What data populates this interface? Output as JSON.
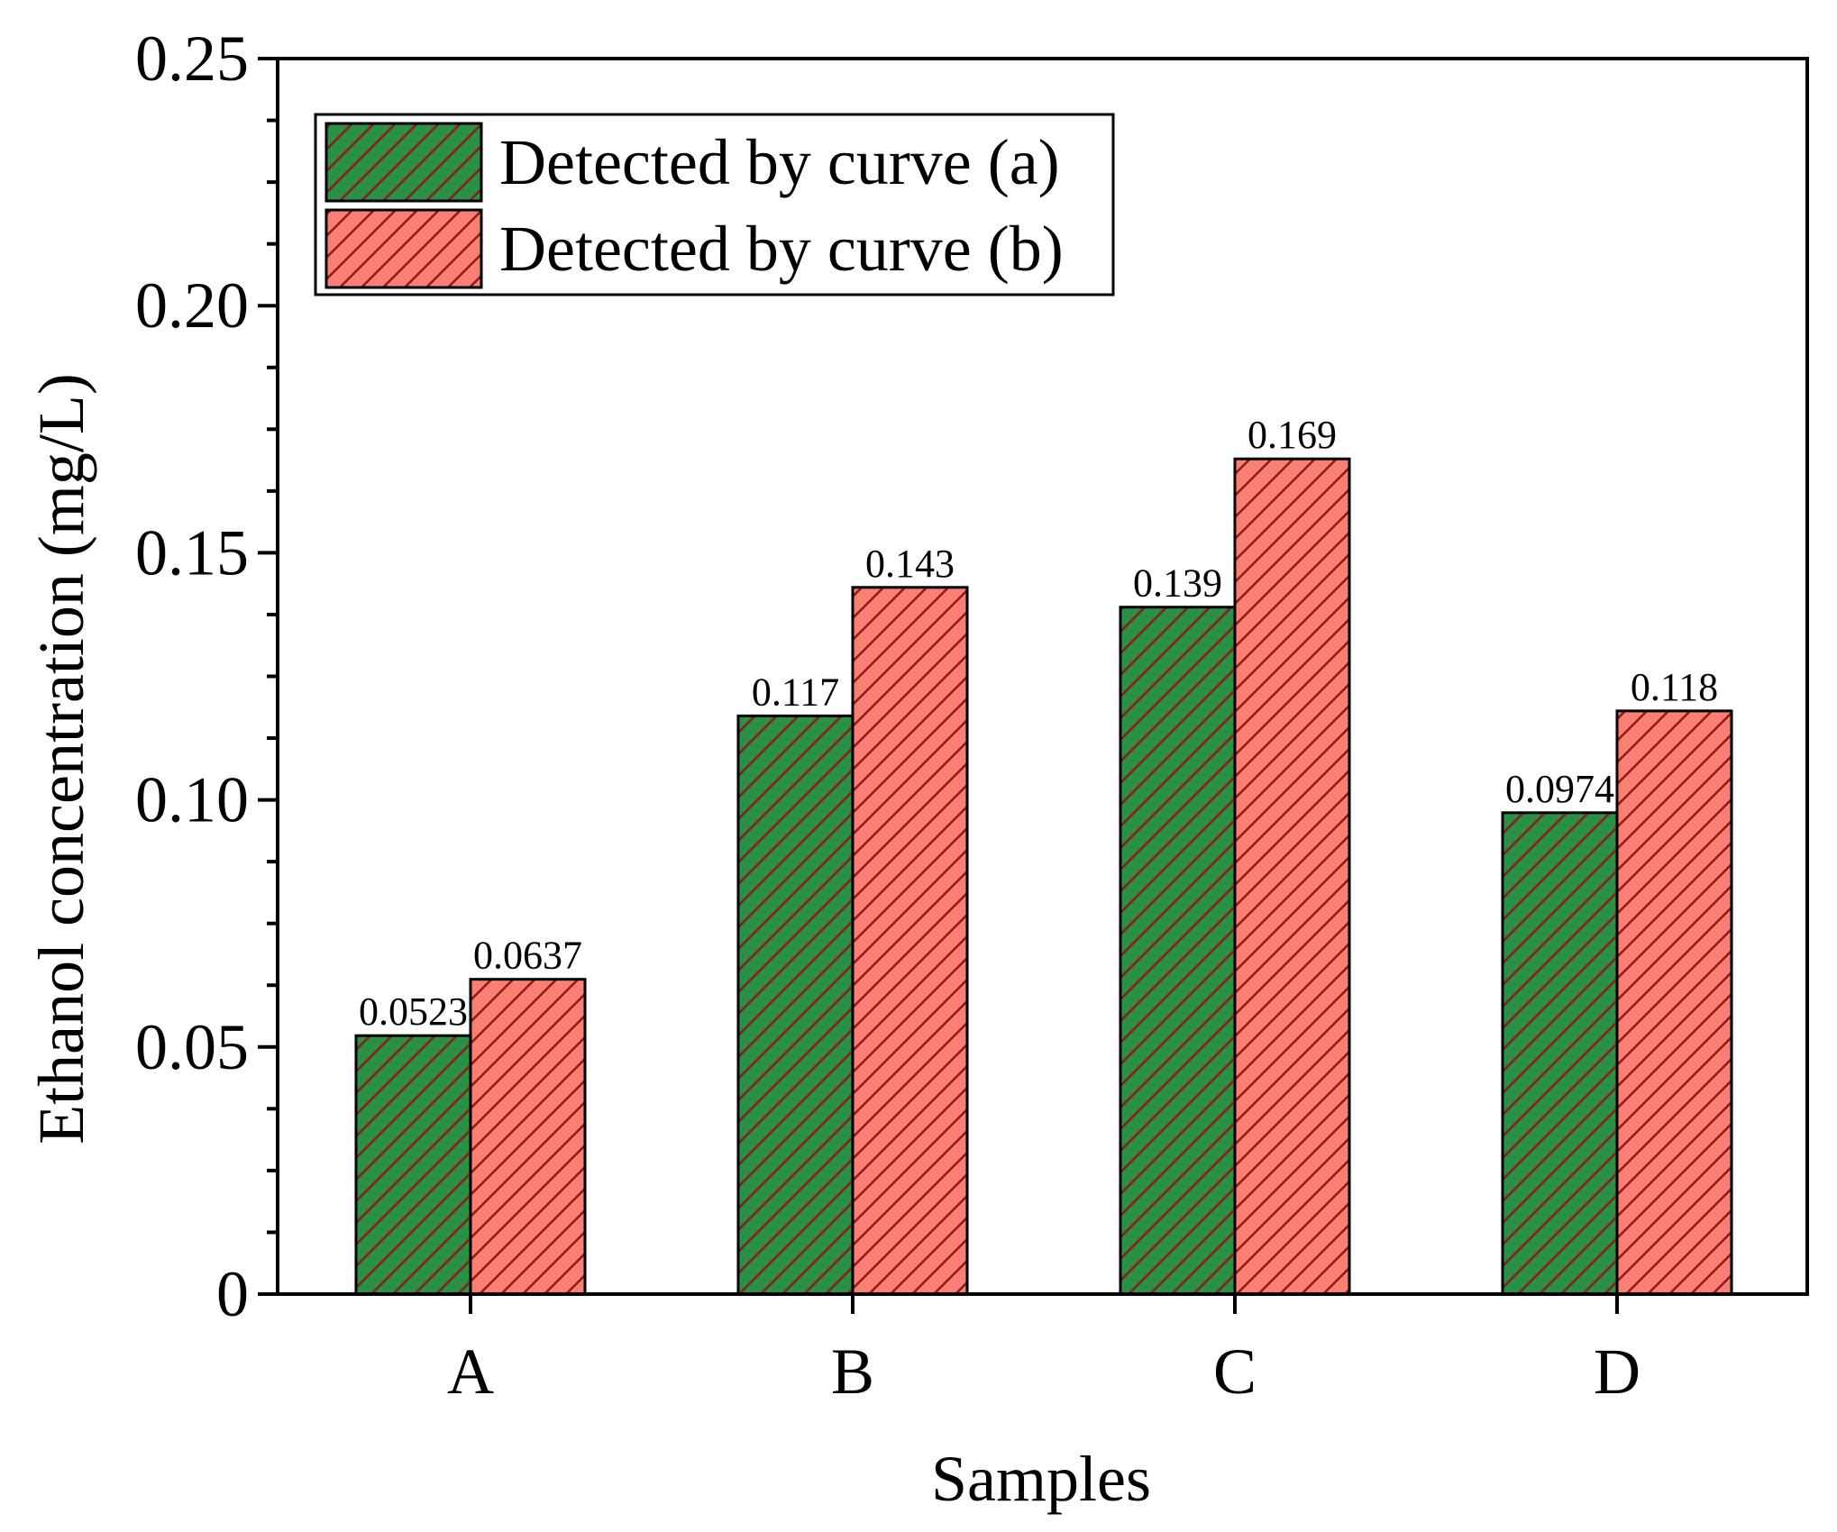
{
  "chart_data": {
    "type": "bar",
    "title": "",
    "xlabel": "Samples",
    "ylabel": "Ethanol concentration (mg/L)",
    "ylim": [
      0,
      0.25
    ],
    "yticks": [
      "0",
      "0.05",
      "0.10",
      "0.15",
      "0.20",
      "0.25"
    ],
    "ytick_values": [
      0,
      0.05,
      0.1,
      0.15,
      0.2,
      0.25
    ],
    "categories": [
      "A",
      "B",
      "C",
      "D"
    ],
    "series": [
      {
        "name": "Detected by curve (a)",
        "values": [
          0.0523,
          0.117,
          0.139,
          0.0974
        ],
        "labels": [
          "0.0523",
          "0.117",
          "0.139",
          "0.0974"
        ],
        "color": "#2a9046",
        "hatch_color": "#8b1a1a"
      },
      {
        "name": "Detected by curve (b)",
        "values": [
          0.0637,
          0.143,
          0.169,
          0.118
        ],
        "labels": [
          "0.0637",
          "0.143",
          "0.169",
          "0.118"
        ],
        "color": "#fa7f72",
        "hatch_color": "#8b1a1a"
      }
    ],
    "legend_position": "top-left",
    "grid": false
  }
}
